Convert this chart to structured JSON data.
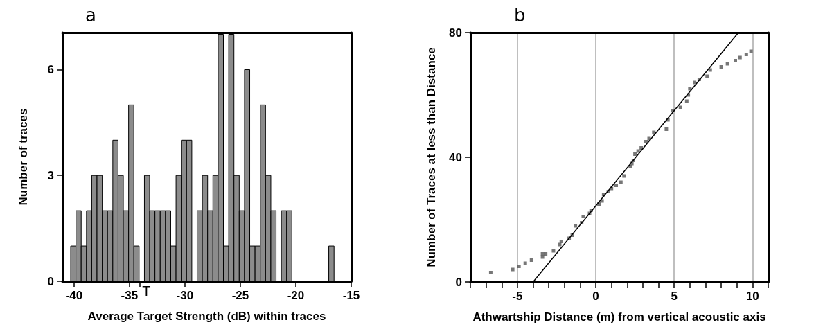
{
  "chart_data": [
    {
      "type": "histogram",
      "title": "a",
      "xlabel": "Average Target Strength (dB) within traces",
      "ylabel": "Number of traces",
      "color": "#8c8c8c",
      "bins": [
        -40.3,
        -39.825,
        -39.35,
        -38.875,
        -38.4,
        -37.925,
        -37.45,
        -36.975,
        -36.5,
        -36.025,
        -35.55,
        -35.075,
        -34.6,
        -34.125,
        -33.65,
        -33.175,
        -32.7,
        -32.225,
        -31.75,
        -31.275,
        -30.8,
        -30.325,
        -29.85,
        -29.375,
        -28.9,
        -28.425,
        -27.95,
        -27.475,
        -27,
        -26.525,
        -26.05,
        -25.575,
        -25.1,
        -24.625,
        -24.15,
        -23.675,
        -23.2,
        -22.725,
        -22.25,
        -21.775,
        -21.3,
        -20.825,
        -20.35,
        -19.875,
        -19.4,
        -18.925,
        -18.45,
        -17.975,
        -17.5,
        -17.025,
        -16.55
      ],
      "values": [
        1,
        2,
        1,
        2,
        3,
        3,
        2,
        2,
        4,
        3,
        2,
        5,
        1,
        0,
        3,
        2,
        2,
        2,
        2,
        1,
        3,
        4,
        4,
        0,
        2,
        3,
        2,
        3,
        7,
        1,
        7,
        3,
        2,
        6,
        1,
        1,
        5,
        3,
        2,
        0,
        2,
        2,
        0,
        0,
        0,
        0,
        0,
        0,
        0,
        1
      ],
      "xlim": [
        -41.05,
        -15
      ],
      "xticks": [
        -40,
        -35,
        {
          "value": -34.1,
          "label": null
        },
        -30,
        -25,
        -20,
        -15
      ],
      "ylim": [
        0,
        7.05
      ],
      "yticks": [
        0,
        3,
        6
      ],
      "grid": false,
      "annotations": [
        {
          "text": "T",
          "x": -34.1,
          "y": 0
        }
      ]
    },
    {
      "type": "scatter",
      "title": "b",
      "xlabel": "Athwartship Distance (m) from vertical acoustic axis",
      "ylabel": "Number of Traces at less than Distance",
      "marker": "square",
      "grid": "x",
      "series": [
        {
          "color": "#555555",
          "x": [
            -6.7,
            -5.3,
            -4.9,
            -4.5,
            -4.1,
            -3.4,
            -3.4,
            -3.2,
            -2.7,
            -2.3,
            -2.2,
            -1.7,
            -1.5,
            -1.3,
            -0.9,
            -0.8,
            -0.4,
            -0.3,
            0.2,
            0.4,
            0.5,
            0.8,
            1.0,
            1.3,
            1.6,
            1.8,
            2.2,
            2.3,
            2.4,
            2.5,
            2.7,
            2.9,
            3.2,
            3.4,
            3.7,
            4.5,
            4.6,
            4.9,
            5.4,
            5.8,
            5.9,
            6.0,
            6.3,
            6.6,
            7.1,
            7.3,
            8.0,
            8.4,
            8.9,
            9.2,
            9.6,
            9.9
          ],
          "values": [
            3,
            4,
            5,
            6,
            7,
            8,
            9,
            9,
            10,
            12,
            13,
            14,
            15,
            18,
            19,
            21,
            22,
            23,
            25,
            26,
            28,
            29,
            30,
            31,
            32,
            34,
            37,
            38,
            39,
            41,
            42,
            43,
            45,
            46,
            48,
            49,
            52,
            55,
            56,
            58,
            60,
            62,
            64,
            65,
            66,
            68,
            69,
            70,
            71,
            72,
            73,
            74
          ]
        },
        {
          "type": "line",
          "color": "#000000",
          "marker": "none",
          "x": [
            -4.0,
            9.1
          ],
          "values": [
            0,
            80
          ]
        }
      ],
      "xlim": [
        -8,
        11
      ],
      "xticks": [
        {
          "value": -8,
          "label": null
        },
        {
          "value": -7,
          "label": null
        },
        {
          "value": -6,
          "label": null
        },
        -5,
        {
          "value": -4,
          "label": null
        },
        {
          "value": -3,
          "label": null
        },
        {
          "value": -2,
          "label": null
        },
        {
          "value": -1,
          "label": null
        },
        0,
        {
          "value": 1,
          "label": null
        },
        {
          "value": 2,
          "label": null
        },
        {
          "value": 3,
          "label": null
        },
        {
          "value": 4,
          "label": null
        },
        5,
        {
          "value": 6,
          "label": null
        },
        {
          "value": 7,
          "label": null
        },
        {
          "value": 8,
          "label": null
        },
        {
          "value": 9,
          "label": null
        },
        10,
        {
          "value": 11,
          "label": null
        }
      ],
      "ylim": [
        0,
        80
      ],
      "yticks": [
        0,
        40,
        80
      ]
    }
  ]
}
